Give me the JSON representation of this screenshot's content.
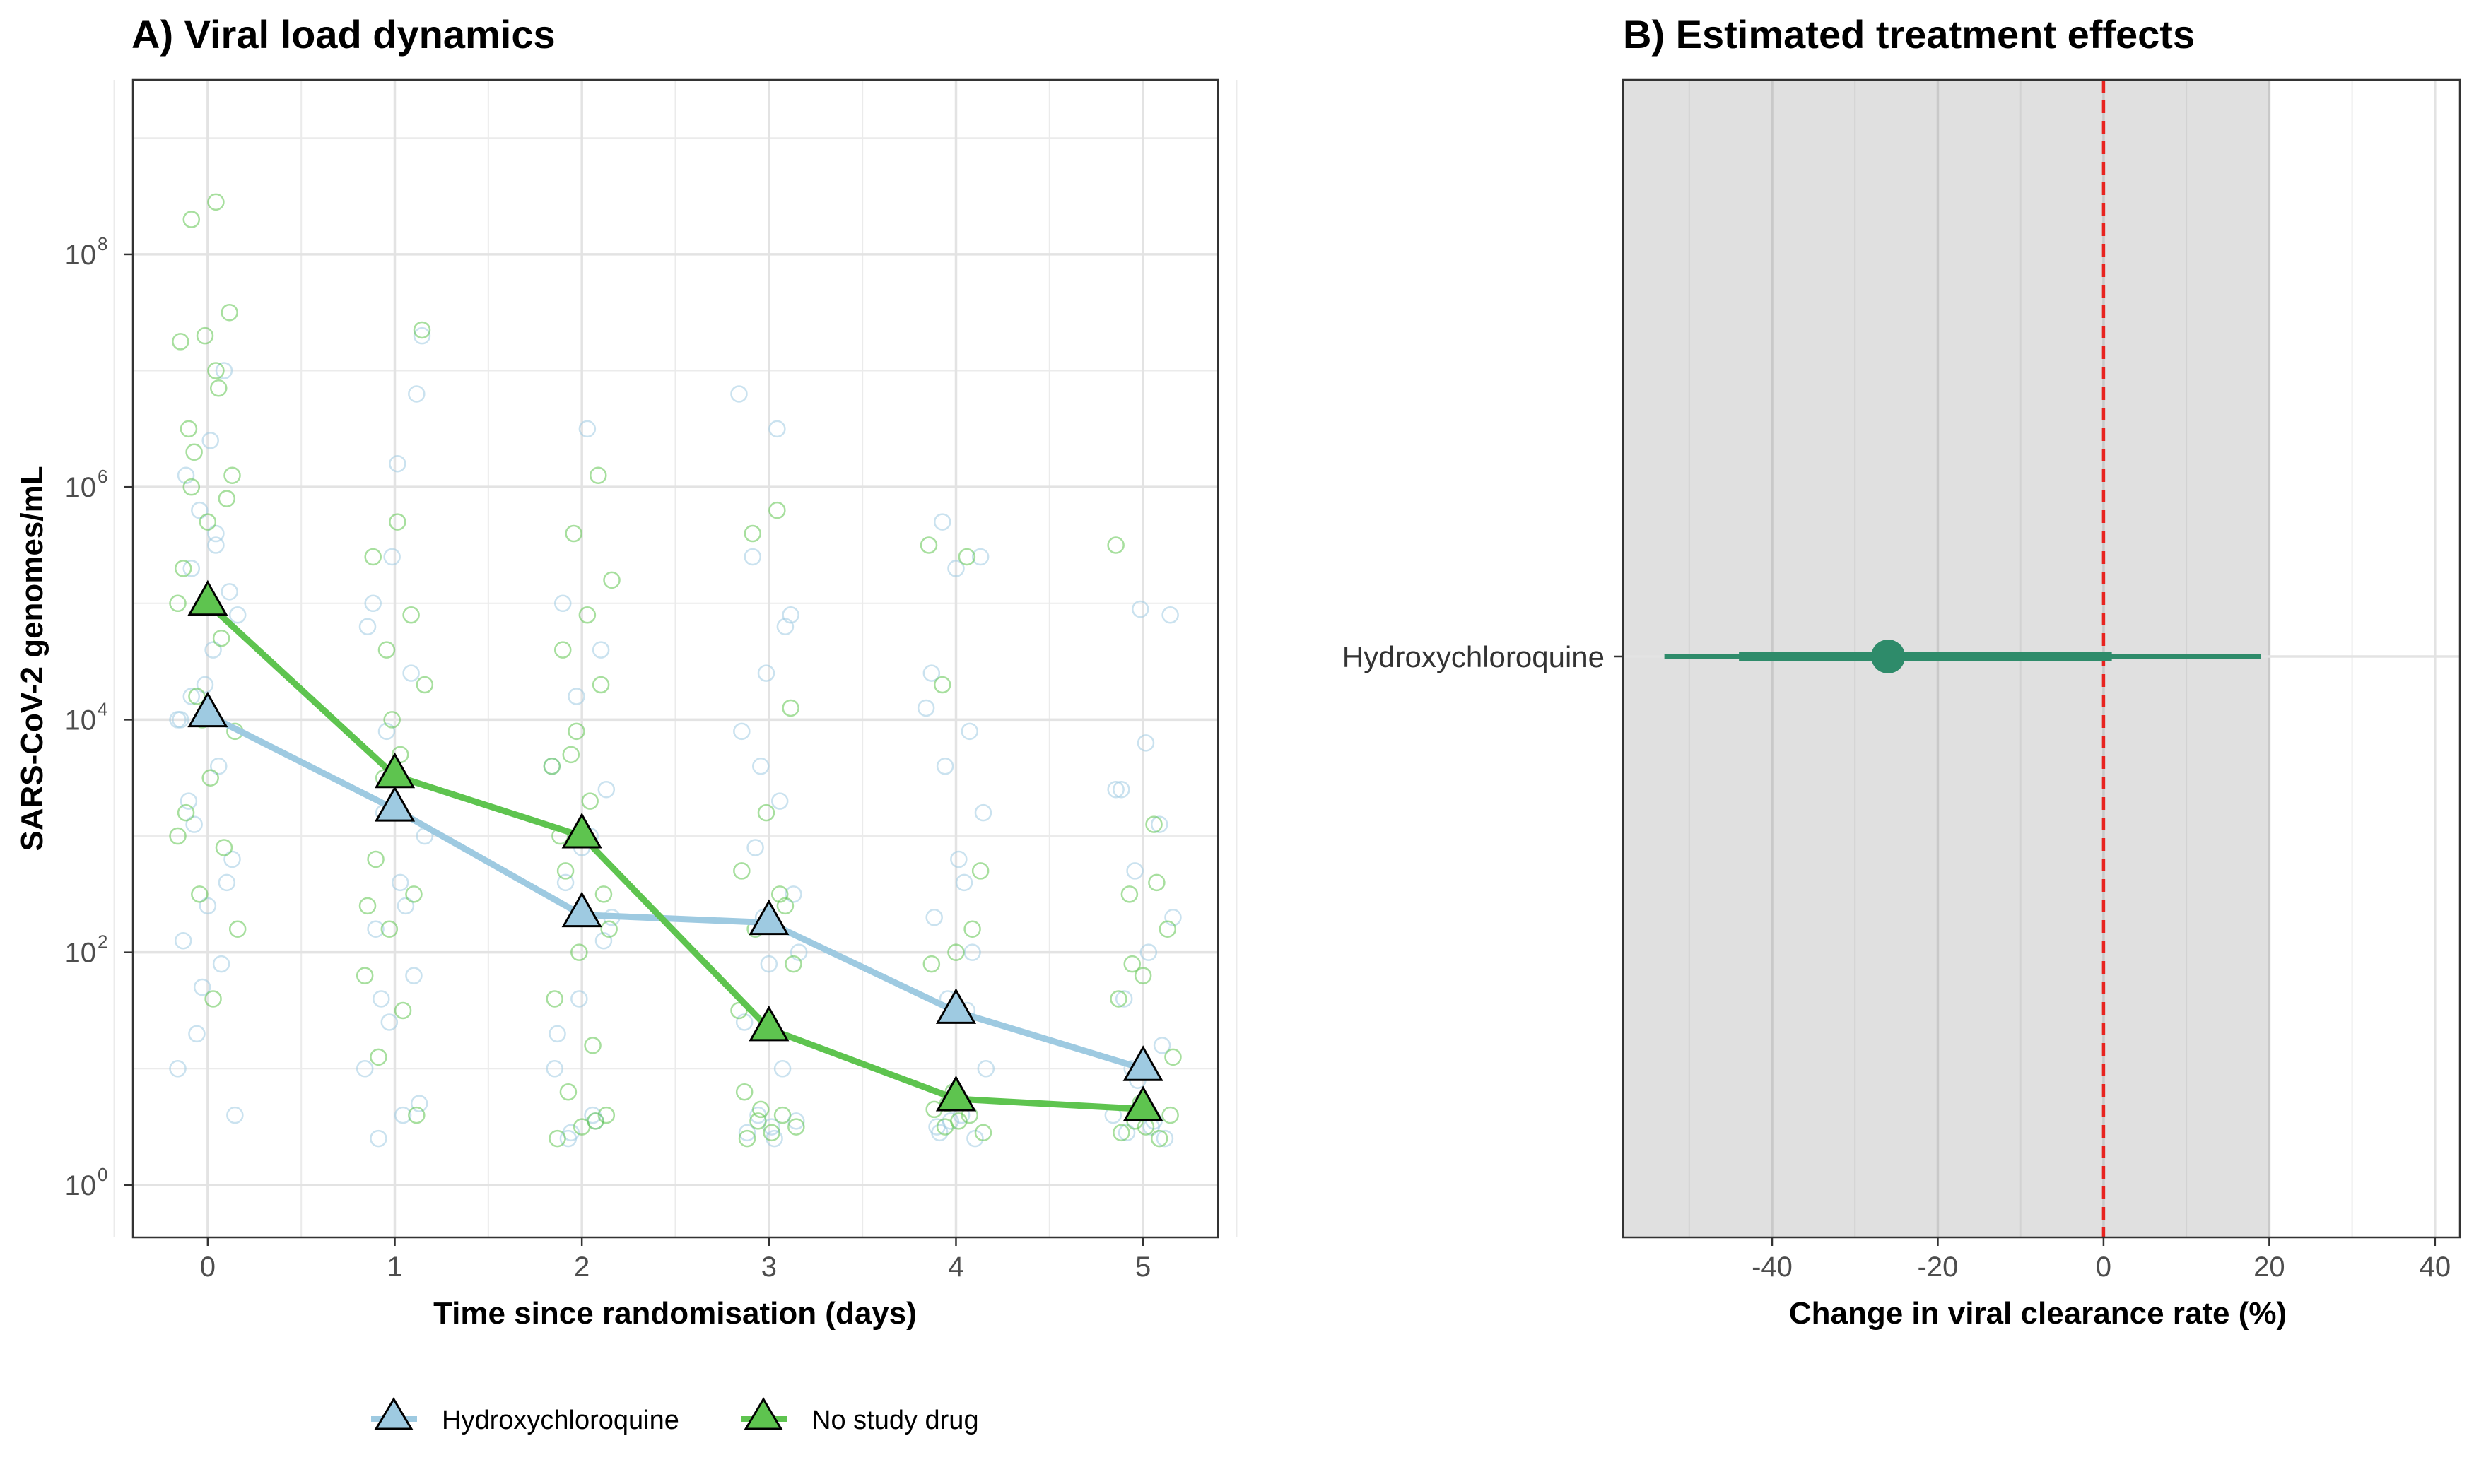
{
  "chart_data": [
    {
      "id": "A",
      "type": "line",
      "title": "A) Viral load dynamics",
      "xlabel": "Time since randomisation (days)",
      "ylabel": "SARS-CoV-2 genomes/mL",
      "x_ticks": [
        0,
        1,
        2,
        3,
        4,
        5
      ],
      "y_scale": "log10",
      "y_ticks": [
        0,
        2,
        4,
        6,
        8
      ],
      "y_tick_base": "10",
      "xlim": [
        -0.4,
        5.4
      ],
      "ylim_log10": [
        -0.45,
        9.5
      ],
      "grid": true,
      "legend_position": "bottom",
      "series": [
        {
          "name": "Hydroxychloroquine",
          "color": "#9ecae1",
          "x": [
            0,
            1,
            2,
            3,
            4,
            5
          ],
          "y": [
            11000,
            1700,
            210,
            180,
            31,
            10
          ],
          "raw_points": [
            [
              0,
              4.0
            ],
            [
              0,
              5.5
            ],
            [
              0,
              5.3
            ],
            [
              0,
              5.1
            ],
            [
              0,
              4.3
            ],
            [
              0,
              4.0
            ],
            [
              0,
              3.6
            ],
            [
              0,
              3.1
            ],
            [
              0,
              2.8
            ],
            [
              0,
              2.4
            ],
            [
              0,
              2.1
            ],
            [
              0,
              1.9
            ],
            [
              0,
              1.3
            ],
            [
              0,
              0.6
            ],
            [
              0,
              6.4
            ],
            [
              0,
              6.1
            ],
            [
              0,
              7.0
            ],
            [
              0,
              5.8
            ],
            [
              0,
              4.9
            ],
            [
              0,
              4.6
            ],
            [
              0,
              3.3
            ],
            [
              0,
              2.6
            ],
            [
              0,
              1.7
            ],
            [
              0,
              1.0
            ],
            [
              0,
              5.6
            ],
            [
              0,
              4.2
            ],
            [
              1,
              3.2
            ],
            [
              1,
              7.3
            ],
            [
              1,
              6.2
            ],
            [
              1,
              5.0
            ],
            [
              1,
              4.4
            ],
            [
              1,
              3.9
            ],
            [
              1,
              3.0
            ],
            [
              1,
              2.6
            ],
            [
              1,
              2.2
            ],
            [
              1,
              1.8
            ],
            [
              1,
              1.4
            ],
            [
              1,
              1.0
            ],
            [
              1,
              0.6
            ],
            [
              1,
              0.4
            ],
            [
              1,
              6.8
            ],
            [
              1,
              5.4
            ],
            [
              1,
              4.8
            ],
            [
              1,
              2.4
            ],
            [
              1,
              1.6
            ],
            [
              1,
              0.7
            ],
            [
              2,
              2.3
            ],
            [
              2,
              6.5
            ],
            [
              2,
              5.0
            ],
            [
              2,
              4.6
            ],
            [
              2,
              4.2
            ],
            [
              2,
              3.6
            ],
            [
              2,
              3.0
            ],
            [
              2,
              2.6
            ],
            [
              2,
              2.1
            ],
            [
              2,
              1.6
            ],
            [
              2,
              1.0
            ],
            [
              2,
              0.6
            ],
            [
              2,
              0.4
            ],
            [
              2,
              3.4
            ],
            [
              2,
              2.9
            ],
            [
              2,
              1.3
            ],
            [
              2,
              0.55
            ],
            [
              2,
              0.45
            ],
            [
              3,
              2.3
            ],
            [
              3,
              6.8
            ],
            [
              3,
              6.5
            ],
            [
              3,
              5.4
            ],
            [
              3,
              4.9
            ],
            [
              3,
              4.4
            ],
            [
              3,
              3.9
            ],
            [
              3,
              3.3
            ],
            [
              3,
              2.9
            ],
            [
              3,
              2.5
            ],
            [
              3,
              1.9
            ],
            [
              3,
              1.4
            ],
            [
              3,
              1.0
            ],
            [
              3,
              0.6
            ],
            [
              3,
              0.55
            ],
            [
              3,
              0.5
            ],
            [
              3,
              0.45
            ],
            [
              3,
              4.8
            ],
            [
              3,
              3.6
            ],
            [
              3,
              2.0
            ],
            [
              3,
              0.4
            ],
            [
              4,
              1.5
            ],
            [
              4,
              5.7
            ],
            [
              4,
              5.4
            ],
            [
              4,
              5.3
            ],
            [
              4,
              4.4
            ],
            [
              4,
              3.9
            ],
            [
              4,
              3.6
            ],
            [
              4,
              3.2
            ],
            [
              4,
              2.8
            ],
            [
              4,
              2.3
            ],
            [
              4,
              2.0
            ],
            [
              4,
              1.6
            ],
            [
              4,
              1.0
            ],
            [
              4,
              0.6
            ],
            [
              4,
              0.5
            ],
            [
              4,
              0.4
            ],
            [
              4,
              0.55
            ],
            [
              4,
              4.1
            ],
            [
              4,
              2.6
            ],
            [
              4,
              0.45
            ],
            [
              5,
              1.0
            ],
            [
              5,
              4.9
            ],
            [
              5,
              3.8
            ],
            [
              5,
              3.4
            ],
            [
              5,
              3.1
            ],
            [
              5,
              2.7
            ],
            [
              5,
              2.3
            ],
            [
              5,
              2.0
            ],
            [
              5,
              1.6
            ],
            [
              5,
              1.2
            ],
            [
              5,
              0.9
            ],
            [
              5,
              0.6
            ],
            [
              5,
              0.5
            ],
            [
              5,
              0.45
            ],
            [
              5,
              0.4
            ],
            [
              5,
              4.95
            ],
            [
              5,
              3.4
            ],
            [
              5,
              0.55
            ]
          ]
        },
        {
          "name": "No study drug",
          "color": "#5ec44f",
          "x": [
            0,
            1,
            2,
            3,
            4,
            5
          ],
          "y": [
            100000,
            3300,
            1000,
            22,
            5.5,
            4.5
          ],
          "raw_points": [
            [
              0,
              5.0
            ],
            [
              0,
              8.45
            ],
            [
              0,
              8.3
            ],
            [
              0,
              7.5
            ],
            [
              0,
              7.3
            ],
            [
              0,
              7.25
            ],
            [
              0,
              6.85
            ],
            [
              0,
              6.3
            ],
            [
              0,
              6.1
            ],
            [
              0,
              5.7
            ],
            [
              0,
              5.3
            ],
            [
              0,
              4.7
            ],
            [
              0,
              4.2
            ],
            [
              0,
              3.9
            ],
            [
              0,
              3.5
            ],
            [
              0,
              3.2
            ],
            [
              0,
              2.9
            ],
            [
              0,
              2.5
            ],
            [
              0,
              2.2
            ],
            [
              0,
              1.6
            ],
            [
              0,
              6.5
            ],
            [
              0,
              5.9
            ],
            [
              0,
              4.0
            ],
            [
              0,
              3.0
            ],
            [
              0,
              7.0
            ],
            [
              0,
              6.0
            ],
            [
              1,
              3.5
            ],
            [
              1,
              7.35
            ],
            [
              1,
              5.7
            ],
            [
              1,
              5.4
            ],
            [
              1,
              4.9
            ],
            [
              1,
              4.6
            ],
            [
              1,
              4.3
            ],
            [
              1,
              3.7
            ],
            [
              1,
              2.8
            ],
            [
              1,
              2.5
            ],
            [
              1,
              2.2
            ],
            [
              1,
              1.8
            ],
            [
              1,
              1.5
            ],
            [
              1,
              1.1
            ],
            [
              1,
              0.6
            ],
            [
              1,
              4.0
            ],
            [
              1,
              2.4
            ],
            [
              2,
              3.0
            ],
            [
              2,
              6.1
            ],
            [
              2,
              5.6
            ],
            [
              2,
              5.2
            ],
            [
              2,
              4.9
            ],
            [
              2,
              4.6
            ],
            [
              2,
              4.3
            ],
            [
              2,
              3.9
            ],
            [
              2,
              3.6
            ],
            [
              2,
              3.3
            ],
            [
              2,
              2.7
            ],
            [
              2,
              2.5
            ],
            [
              2,
              2.0
            ],
            [
              2,
              1.6
            ],
            [
              2,
              1.2
            ],
            [
              2,
              0.8
            ],
            [
              2,
              0.6
            ],
            [
              2,
              0.5
            ],
            [
              2,
              0.4
            ],
            [
              2,
              0.55
            ],
            [
              2,
              3.7
            ],
            [
              2,
              2.2
            ],
            [
              3,
              1.5
            ],
            [
              3,
              5.8
            ],
            [
              3,
              5.6
            ],
            [
              3,
              4.1
            ],
            [
              3,
              3.2
            ],
            [
              3,
              2.7
            ],
            [
              3,
              2.5
            ],
            [
              3,
              2.2
            ],
            [
              3,
              1.9
            ],
            [
              3,
              1.4
            ],
            [
              3,
              0.8
            ],
            [
              3,
              0.6
            ],
            [
              3,
              0.55
            ],
            [
              3,
              0.5
            ],
            [
              3,
              0.45
            ],
            [
              3,
              0.4
            ],
            [
              3,
              2.4
            ],
            [
              3,
              0.65
            ],
            [
              4,
              0.8
            ],
            [
              4,
              5.5
            ],
            [
              4,
              5.4
            ],
            [
              4,
              4.3
            ],
            [
              4,
              2.7
            ],
            [
              4,
              2.0
            ],
            [
              4,
              1.9
            ],
            [
              4,
              0.6
            ],
            [
              4,
              0.5
            ],
            [
              4,
              0.45
            ],
            [
              4,
              0.55
            ],
            [
              4,
              0.65
            ],
            [
              4,
              2.2
            ],
            [
              4,
              0.7
            ],
            [
              5,
              0.7
            ],
            [
              5,
              5.5
            ],
            [
              5,
              3.1
            ],
            [
              5,
              2.5
            ],
            [
              5,
              2.2
            ],
            [
              5,
              1.8
            ],
            [
              5,
              1.6
            ],
            [
              5,
              2.6
            ],
            [
              5,
              1.9
            ],
            [
              5,
              0.6
            ],
            [
              5,
              0.5
            ],
            [
              5,
              0.45
            ],
            [
              5,
              0.4
            ],
            [
              5,
              0.55
            ],
            [
              5,
              1.1
            ]
          ]
        }
      ]
    },
    {
      "id": "B",
      "type": "forest",
      "title": "B) Estimated treatment effects",
      "xlabel": "Change in viral clearance rate (%)",
      "ylabel": "",
      "x_ticks": [
        -40,
        -20,
        0,
        20,
        40
      ],
      "xlim": [
        -58,
        43
      ],
      "shaded_region": [
        -58,
        20
      ],
      "reference_line": 0,
      "categories": [
        "Hydroxychloroquine"
      ],
      "estimates": [
        {
          "label": "Hydroxychloroquine",
          "estimate": -26,
          "ci_inner": [
            -44,
            1
          ],
          "ci_outer": [
            -53,
            19
          ],
          "color": "#2e8b6a"
        }
      ]
    }
  ]
}
